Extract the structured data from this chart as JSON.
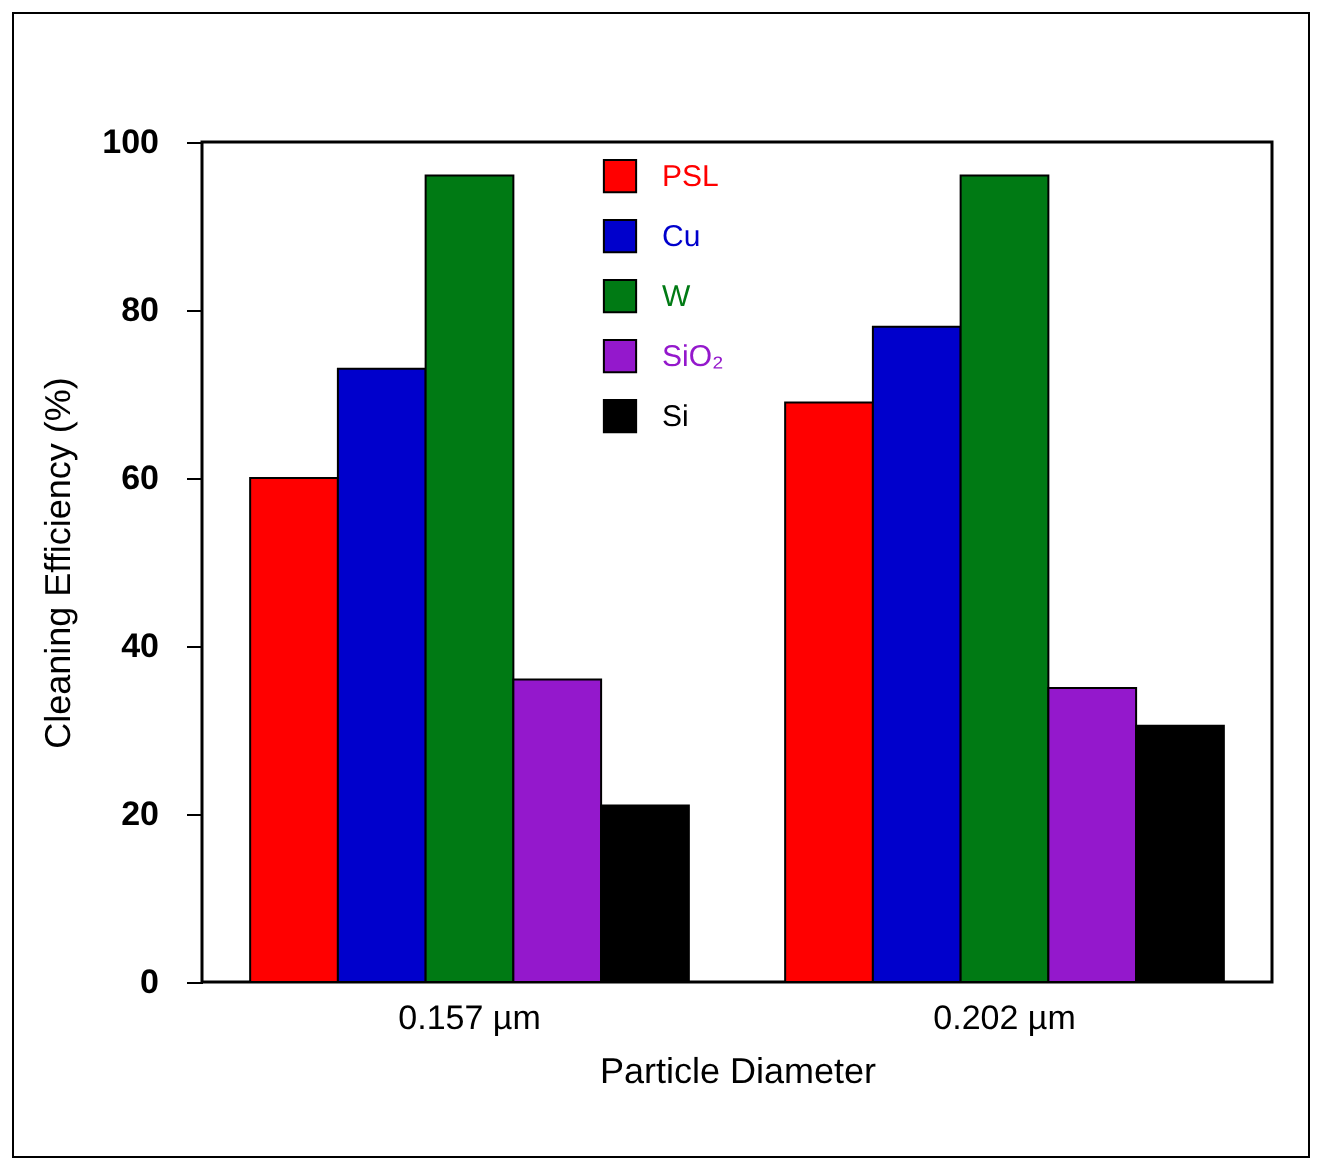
{
  "chart_data": {
    "type": "bar",
    "xlabel": "Particle Diameter",
    "ylabel": "Cleaning Efficiency (%)",
    "categories": [
      "0.157 µm",
      "0.202 µm"
    ],
    "series": [
      {
        "name": "PSL",
        "color": "#ff0000",
        "values": [
          60,
          69
        ]
      },
      {
        "name": "Cu",
        "color": "#0000cc",
        "values": [
          73,
          78
        ]
      },
      {
        "name": "W",
        "color": "#007a14",
        "values": [
          96,
          96
        ]
      },
      {
        "name": "SiO₂",
        "color": "#9418cc",
        "values": [
          36,
          35
        ]
      },
      {
        "name": "Si",
        "color": "#000000",
        "values": [
          21,
          30.5
        ]
      }
    ],
    "ylim": [
      0,
      100
    ],
    "yticks": [
      0,
      20,
      40,
      60,
      80,
      100
    ],
    "grid": false,
    "legend": "top"
  }
}
